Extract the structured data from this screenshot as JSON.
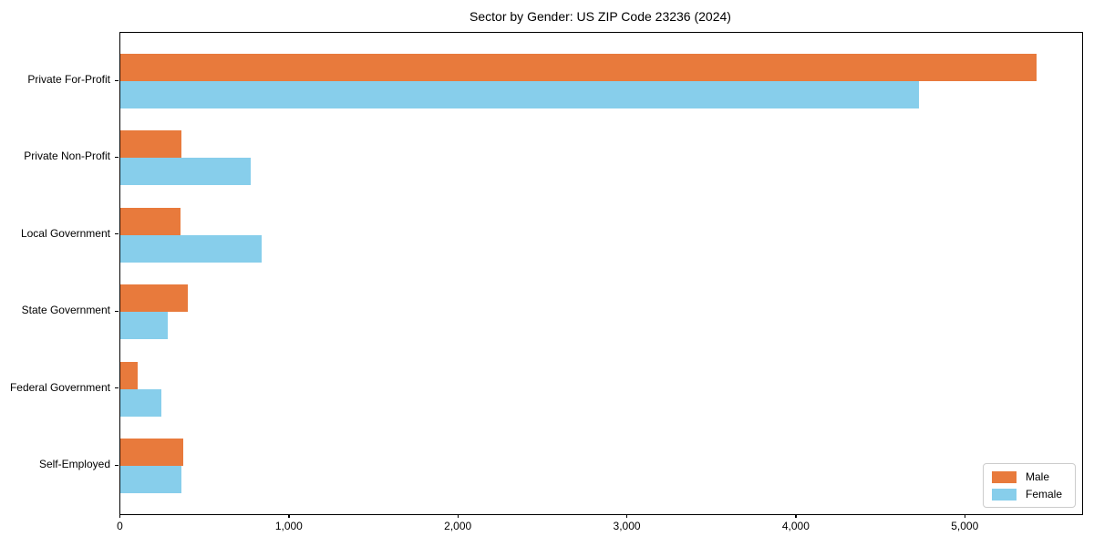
{
  "chart_data": {
    "type": "bar",
    "orientation": "horizontal",
    "title": "Sector by Gender: US ZIP Code 23236 (2024)",
    "categories": [
      "Private For-Profit",
      "Private Non-Profit",
      "Local Government",
      "State Government",
      "Federal Government",
      "Self-Employed"
    ],
    "series": [
      {
        "name": "Male",
        "color": "#E87A3C",
        "values": [
          5420,
          360,
          355,
          400,
          100,
          370
        ]
      },
      {
        "name": "Female",
        "color": "#87CEEB",
        "values": [
          4725,
          770,
          835,
          280,
          245,
          360
        ]
      }
    ],
    "xlabel": "",
    "ylabel": "",
    "xlim": [
      0,
      5692
    ],
    "xtick_values": [
      0,
      1000,
      2000,
      3000,
      4000,
      5000
    ],
    "xtick_labels": [
      "0",
      "1,000",
      "2,000",
      "3,000",
      "4,000",
      "5,000"
    ],
    "grid": false,
    "legend_position": "lower right",
    "axis_color": "#000000",
    "background_color": "#ffffff",
    "legend_border_color": "#cccccc"
  }
}
